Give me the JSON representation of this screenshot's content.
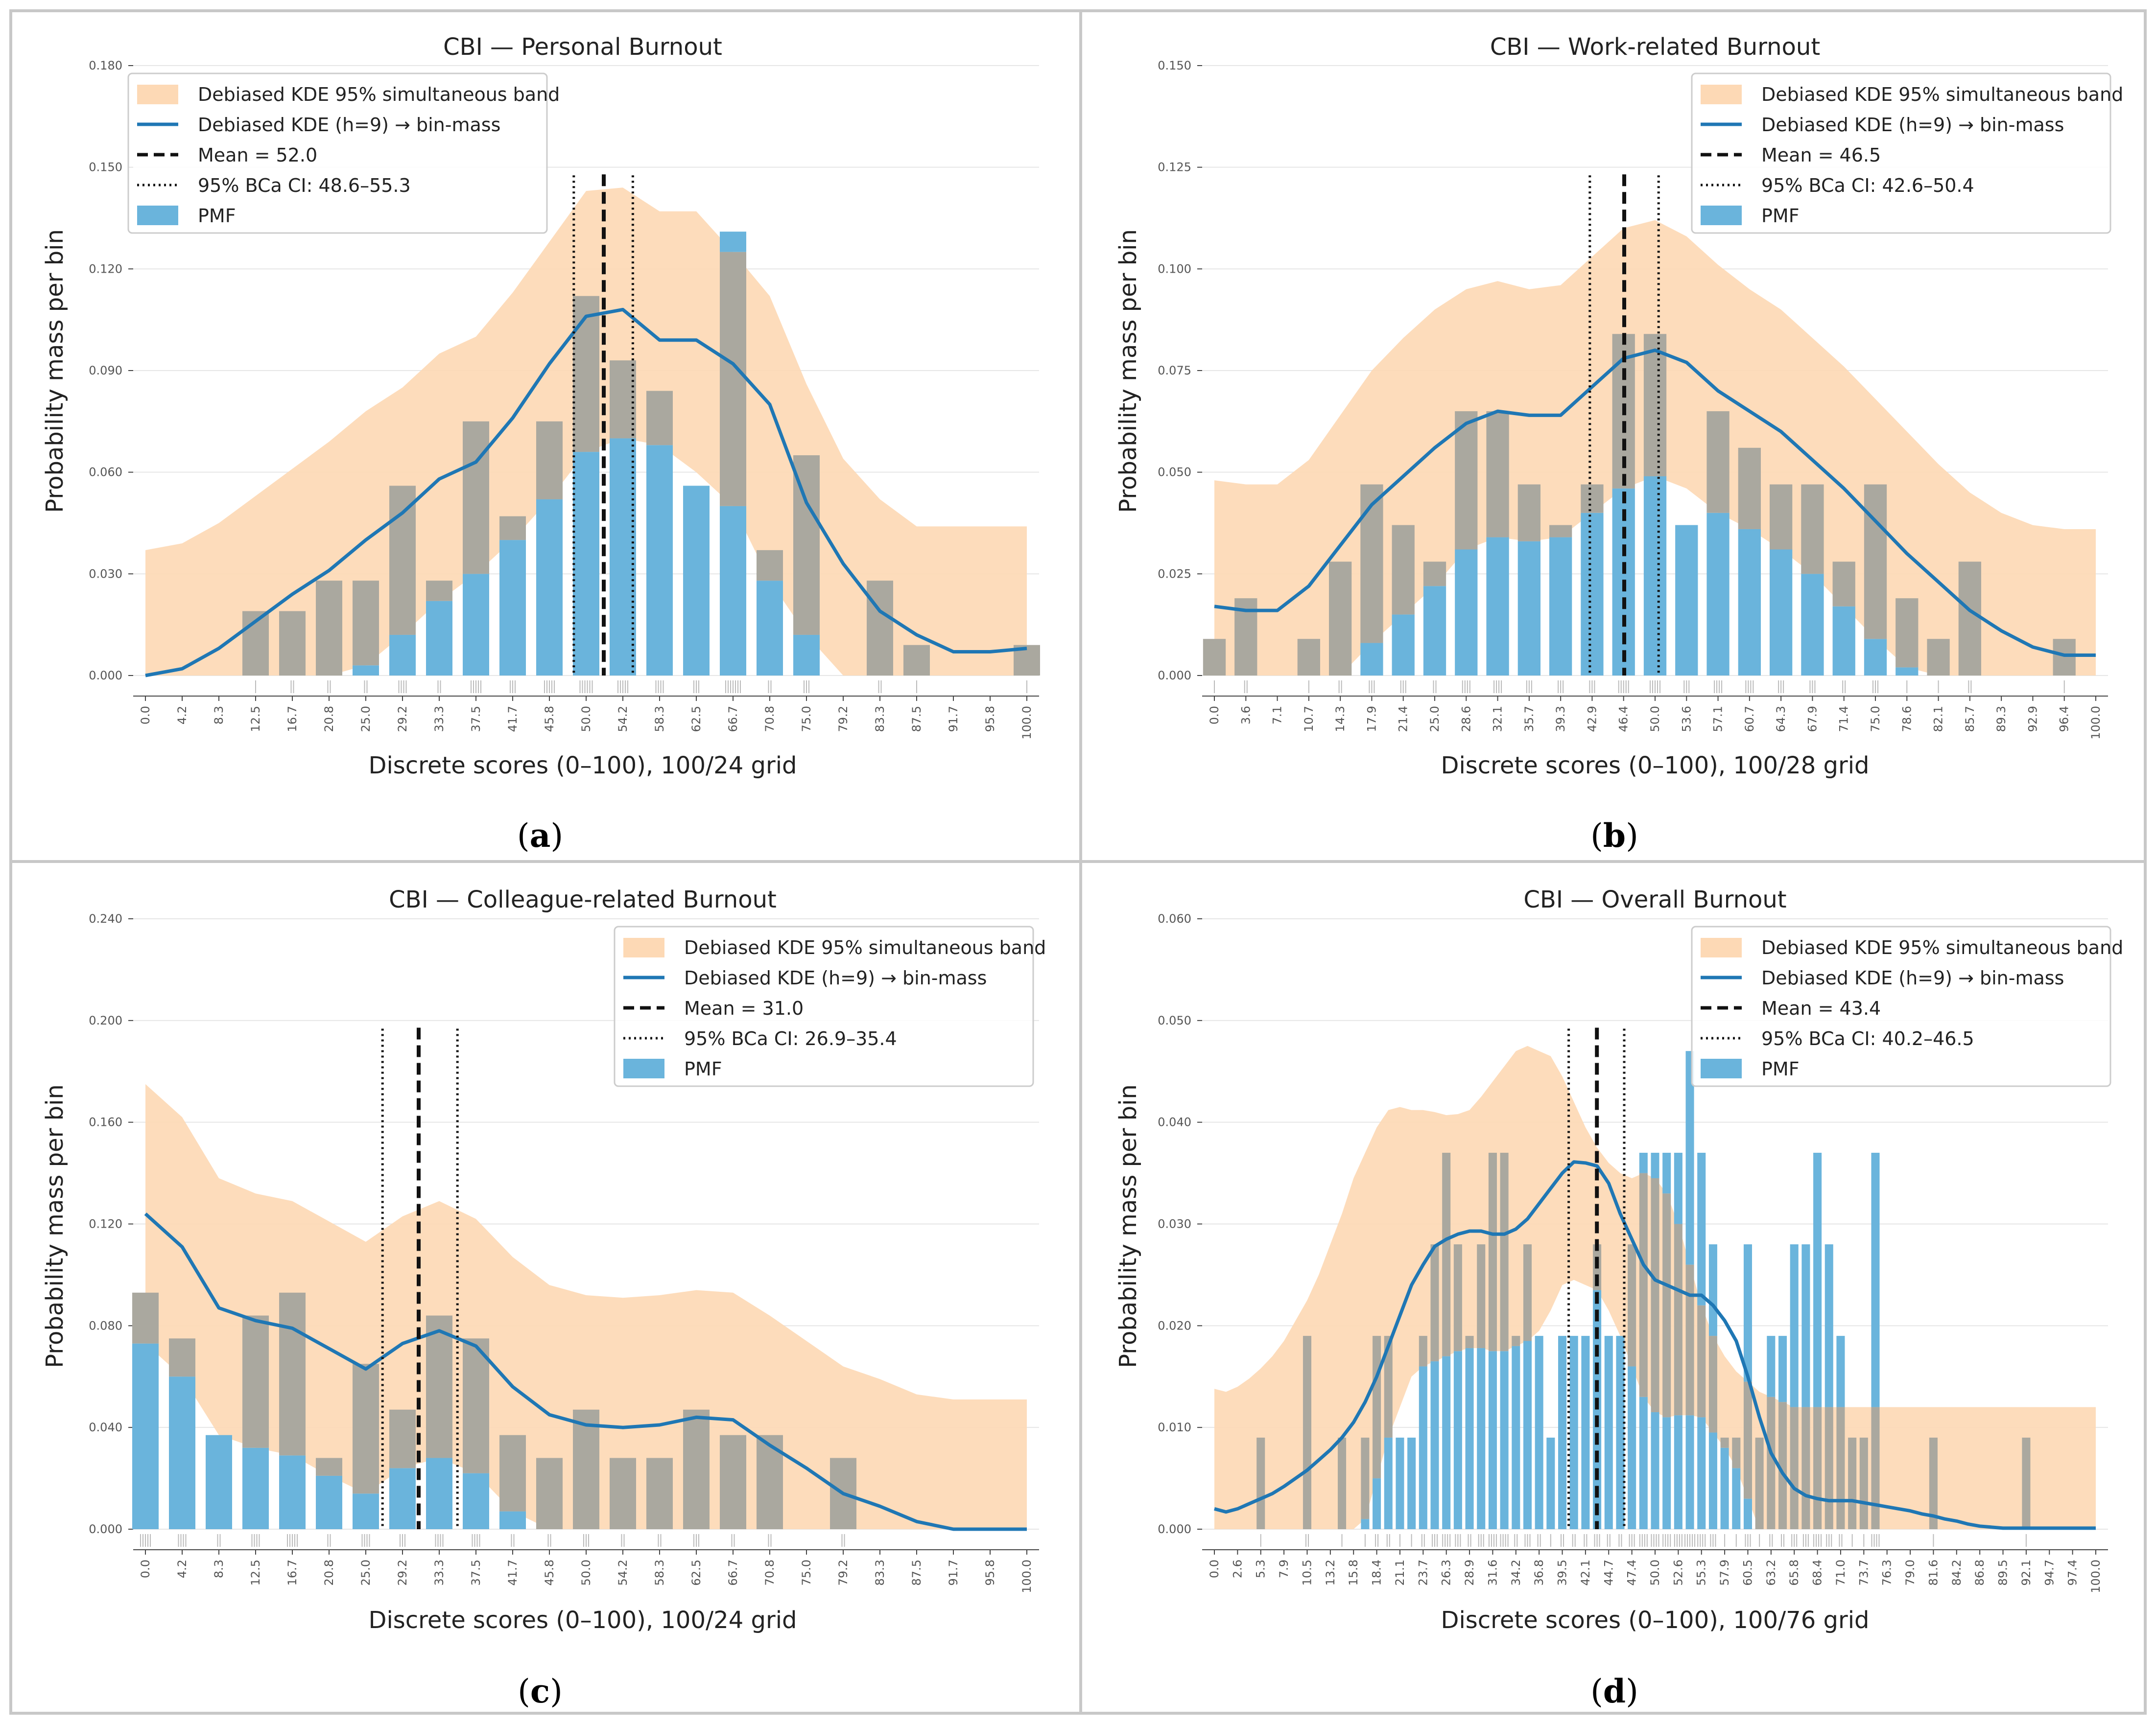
{
  "figure": {
    "colors": {
      "band": "#fdd9b5",
      "kde": "#1f77b4",
      "pmf": "#6ab4dc",
      "overlap": "#aaa89f",
      "rug": "#bbbbbb"
    }
  },
  "chart_data": [
    {
      "type": "bar",
      "letter": "a",
      "title": "CBI — Personal Burnout",
      "xlabel": "Discrete scores (0–100), 100/24 grid",
      "ylabel": "Probability mass per bin",
      "grid_n": 24,
      "ylim": [
        0,
        0.18
      ],
      "yticks": [
        0.0,
        0.03,
        0.06,
        0.09,
        0.12,
        0.15,
        0.18
      ],
      "ytick_labels": [
        "0.000",
        "0.030",
        "0.060",
        "0.090",
        "0.120",
        "0.150",
        "0.180"
      ],
      "xtick_labels": [
        "0.0",
        "4.2",
        "8.3",
        "12.5",
        "16.7",
        "20.8",
        "25.0",
        "29.2",
        "33.3",
        "37.5",
        "41.7",
        "45.8",
        "50.0",
        "54.2",
        "58.3",
        "62.5",
        "66.7",
        "70.8",
        "75.0",
        "79.2",
        "83.3",
        "87.5",
        "91.7",
        "95.8",
        "100.0"
      ],
      "pmf": [
        0,
        0,
        0,
        0.019,
        0.019,
        0.028,
        0.028,
        0.056,
        0.028,
        0.075,
        0.047,
        0.075,
        0.112,
        0.093,
        0.084,
        0.056,
        0.131,
        0.037,
        0.065,
        0,
        0.028,
        0.009,
        0,
        0,
        0.009
      ],
      "kde": [
        0,
        0.002,
        0.008,
        0.016,
        0.024,
        0.031,
        0.04,
        0.048,
        0.058,
        0.063,
        0.076,
        0.092,
        0.106,
        0.108,
        0.099,
        0.099,
        0.092,
        0.08,
        0.051,
        0.033,
        0.019,
        0.012,
        0.007,
        0.007,
        0.008
      ],
      "band_lower": [
        0,
        0,
        0,
        0,
        0,
        0,
        0.003,
        0.012,
        0.022,
        0.03,
        0.04,
        0.052,
        0.066,
        0.07,
        0.068,
        0.06,
        0.05,
        0.028,
        0.012,
        0,
        0,
        0,
        0,
        0,
        0
      ],
      "band_upper": [
        0.037,
        0.039,
        0.045,
        0.053,
        0.061,
        0.069,
        0.078,
        0.085,
        0.095,
        0.1,
        0.113,
        0.128,
        0.143,
        0.144,
        0.137,
        0.137,
        0.125,
        0.112,
        0.086,
        0.064,
        0.052,
        0.044,
        0.044,
        0.044,
        0.044
      ],
      "mean": 52.0,
      "ci": [
        48.6,
        55.3
      ],
      "rug_counts": [
        0,
        0,
        0,
        1,
        2,
        2,
        2,
        4,
        2,
        5,
        3,
        5,
        6,
        5,
        4,
        3,
        7,
        2,
        3,
        0,
        2,
        1,
        0,
        0,
        1
      ],
      "legend_position": "top-left",
      "legend": [
        "Debiased KDE 95% simultaneous band",
        "Debiased KDE (h=9) → bin-mass",
        "Mean = 52.0",
        "95% BCa CI: 48.6–55.3",
        "PMF"
      ]
    },
    {
      "type": "bar",
      "letter": "b",
      "title": "CBI — Work-related Burnout",
      "xlabel": "Discrete scores (0–100), 100/28 grid",
      "ylabel": "Probability mass per bin",
      "grid_n": 28,
      "ylim": [
        0,
        0.15
      ],
      "yticks": [
        0.0,
        0.025,
        0.05,
        0.075,
        0.1,
        0.125,
        0.15
      ],
      "ytick_labels": [
        "0.000",
        "0.025",
        "0.050",
        "0.075",
        "0.100",
        "0.125",
        "0.150"
      ],
      "xtick_labels": [
        "0.0",
        "3.6",
        "7.1",
        "10.7",
        "14.3",
        "17.9",
        "21.4",
        "25.0",
        "28.6",
        "32.1",
        "35.7",
        "39.3",
        "42.9",
        "46.4",
        "50.0",
        "53.6",
        "57.1",
        "60.7",
        "64.3",
        "67.9",
        "71.4",
        "75.0",
        "78.6",
        "82.1",
        "85.7",
        "89.3",
        "92.9",
        "96.4",
        "100.0"
      ],
      "pmf": [
        0.009,
        0.019,
        0,
        0.009,
        0.028,
        0.047,
        0.037,
        0.028,
        0.065,
        0.065,
        0.047,
        0.037,
        0.047,
        0.084,
        0.084,
        0.037,
        0.065,
        0.056,
        0.047,
        0.047,
        0.028,
        0.047,
        0.019,
        0.009,
        0.028,
        0,
        0,
        0.009,
        0
      ],
      "kde": [
        0.017,
        0.016,
        0.016,
        0.022,
        0.032,
        0.042,
        0.049,
        0.056,
        0.062,
        0.065,
        0.064,
        0.064,
        0.071,
        0.078,
        0.08,
        0.077,
        0.07,
        0.065,
        0.06,
        0.053,
        0.046,
        0.038,
        0.03,
        0.023,
        0.016,
        0.011,
        0.007,
        0.005,
        0.005
      ],
      "band_lower": [
        0,
        0,
        0,
        0,
        0,
        0.008,
        0.015,
        0.022,
        0.031,
        0.034,
        0.033,
        0.034,
        0.04,
        0.046,
        0.049,
        0.046,
        0.04,
        0.036,
        0.031,
        0.025,
        0.017,
        0.009,
        0.002,
        0,
        0,
        0,
        0,
        0,
        0
      ],
      "band_upper": [
        0.048,
        0.047,
        0.047,
        0.053,
        0.064,
        0.075,
        0.083,
        0.09,
        0.095,
        0.097,
        0.095,
        0.096,
        0.103,
        0.11,
        0.112,
        0.108,
        0.101,
        0.095,
        0.09,
        0.083,
        0.076,
        0.068,
        0.06,
        0.052,
        0.045,
        0.04,
        0.037,
        0.036,
        0.036
      ],
      "mean": 46.5,
      "ci": [
        42.6,
        50.4
      ],
      "rug_counts": [
        1,
        2,
        0,
        1,
        2,
        3,
        3,
        2,
        4,
        4,
        3,
        3,
        3,
        5,
        5,
        3,
        4,
        4,
        3,
        3,
        2,
        3,
        1,
        1,
        2,
        0,
        0,
        1,
        0
      ],
      "legend_position": "top-right",
      "legend": [
        "Debiased KDE 95% simultaneous band",
        "Debiased KDE (h=9) → bin-mass",
        "Mean = 46.5",
        "95% BCa CI: 42.6–50.4",
        "PMF"
      ]
    },
    {
      "type": "bar",
      "letter": "c",
      "title": "CBI — Colleague-related Burnout",
      "xlabel": "Discrete scores (0–100), 100/24 grid",
      "ylabel": "Probability mass per bin",
      "grid_n": 24,
      "ylim": [
        0,
        0.24
      ],
      "yticks": [
        0.0,
        0.04,
        0.08,
        0.12,
        0.16,
        0.2,
        0.24
      ],
      "ytick_labels": [
        "0.000",
        "0.040",
        "0.080",
        "0.120",
        "0.160",
        "0.200",
        "0.240"
      ],
      "xtick_labels": [
        "0.0",
        "4.2",
        "8.3",
        "12.5",
        "16.7",
        "20.8",
        "25.0",
        "29.2",
        "33.3",
        "37.5",
        "41.7",
        "45.8",
        "50.0",
        "54.2",
        "58.3",
        "62.5",
        "66.7",
        "70.8",
        "75.0",
        "79.2",
        "83.3",
        "87.5",
        "91.7",
        "95.8",
        "100.0"
      ],
      "pmf": [
        0.093,
        0.075,
        0.037,
        0.084,
        0.093,
        0.028,
        0.065,
        0.047,
        0.084,
        0.075,
        0.037,
        0.028,
        0.047,
        0.028,
        0.028,
        0.047,
        0.037,
        0.037,
        0,
        0.028,
        0,
        0,
        0,
        0,
        0
      ],
      "kde": [
        0.124,
        0.111,
        0.087,
        0.082,
        0.079,
        0.071,
        0.063,
        0.073,
        0.078,
        0.072,
        0.056,
        0.045,
        0.041,
        0.04,
        0.041,
        0.044,
        0.043,
        0.033,
        0.024,
        0.014,
        0.009,
        0.003,
        0,
        0,
        0
      ],
      "band_lower": [
        0.073,
        0.06,
        0.037,
        0.032,
        0.029,
        0.021,
        0.014,
        0.024,
        0.028,
        0.022,
        0.007,
        0,
        0,
        0,
        0,
        0,
        0,
        0,
        0,
        0,
        0,
        0,
        0,
        0,
        0
      ],
      "band_upper": [
        0.175,
        0.162,
        0.138,
        0.132,
        0.129,
        0.121,
        0.113,
        0.123,
        0.129,
        0.122,
        0.107,
        0.096,
        0.092,
        0.091,
        0.092,
        0.094,
        0.093,
        0.084,
        0.074,
        0.064,
        0.059,
        0.053,
        0.051,
        0.051,
        0.051
      ],
      "mean": 31.0,
      "ci": [
        26.9,
        35.4
      ],
      "rug_counts": [
        5,
        4,
        2,
        4,
        5,
        2,
        4,
        3,
        4,
        4,
        2,
        2,
        3,
        2,
        2,
        3,
        2,
        2,
        0,
        2,
        0,
        0,
        0,
        0,
        0
      ],
      "legend_position": "top-right",
      "legend": [
        "Debiased KDE 95% simultaneous band",
        "Debiased KDE (h=9) → bin-mass",
        "Mean = 31.0",
        "95% BCa CI: 26.9–35.4",
        "PMF"
      ]
    },
    {
      "type": "bar",
      "letter": "d",
      "title": "CBI — Overall Burnout",
      "xlabel": "Discrete scores (0–100), 100/76 grid",
      "ylabel": "Probability mass per bin",
      "grid_n": 76,
      "ylim": [
        0,
        0.06
      ],
      "yticks": [
        0.0,
        0.01,
        0.02,
        0.03,
        0.04,
        0.05,
        0.06
      ],
      "ytick_labels": [
        "0.000",
        "0.010",
        "0.020",
        "0.030",
        "0.040",
        "0.050",
        "0.060"
      ],
      "xtick_labels": [
        "0.0",
        "2.6",
        "5.3",
        "7.9",
        "10.5",
        "13.2",
        "15.8",
        "18.4",
        "21.1",
        "23.7",
        "26.3",
        "28.9",
        "31.6",
        "34.2",
        "36.8",
        "39.5",
        "42.1",
        "44.7",
        "47.4",
        "50.0",
        "52.6",
        "55.3",
        "57.9",
        "60.5",
        "63.2",
        "65.8",
        "68.4",
        "71.0",
        "73.7",
        "76.3",
        "79.0",
        "81.6",
        "84.2",
        "86.8",
        "89.5",
        "92.1",
        "94.7",
        "97.4",
        "100.0"
      ],
      "pmf": [
        0,
        0,
        0,
        0,
        0.009,
        0,
        0,
        0,
        0.019,
        0,
        0,
        0.009,
        0,
        0.009,
        0.019,
        0.019,
        0.009,
        0.009,
        0.019,
        0.028,
        0.037,
        0.028,
        0.019,
        0.028,
        0.037,
        0.037,
        0.019,
        0.028,
        0.019,
        0.009,
        0.019,
        0.019,
        0.019,
        0.028,
        0.019,
        0.019,
        0.028,
        0.037,
        0.037,
        0.037,
        0.037,
        0.047,
        0.037,
        0.028,
        0.009,
        0.009,
        0.028,
        0.009,
        0.019,
        0.019,
        0.028,
        0.028,
        0.037,
        0.028,
        0.019,
        0.009,
        0.009,
        0.037,
        0,
        0,
        0,
        0,
        0.009,
        0,
        0,
        0,
        0,
        0,
        0,
        0,
        0.009,
        0,
        0,
        0,
        0,
        0,
        0
      ],
      "kde": [
        0.002,
        0.0017,
        0.002,
        0.0025,
        0.003,
        0.0035,
        0.0042,
        0.005,
        0.0058,
        0.0068,
        0.0078,
        0.009,
        0.0105,
        0.0125,
        0.015,
        0.018,
        0.021,
        0.024,
        0.026,
        0.0278,
        0.0285,
        0.029,
        0.0293,
        0.0293,
        0.029,
        0.029,
        0.0295,
        0.0305,
        0.032,
        0.0335,
        0.035,
        0.0361,
        0.036,
        0.0357,
        0.034,
        0.031,
        0.0285,
        0.026,
        0.0245,
        0.024,
        0.0235,
        0.023,
        0.023,
        0.022,
        0.0205,
        0.0185,
        0.015,
        0.011,
        0.0075,
        0.0055,
        0.004,
        0.0033,
        0.003,
        0.0028,
        0.0028,
        0.0028,
        0.0026,
        0.0024,
        0.0022,
        0.002,
        0.0018,
        0.0015,
        0.0013,
        0.001,
        0.0008,
        0.0005,
        0.0003,
        0.0002,
        0.0001,
        0.0001,
        0.0001,
        0.0001,
        0.0001,
        0.0001,
        0.0001,
        0.0001,
        0.0001
      ],
      "band_lower": [
        0,
        0,
        0,
        0,
        0,
        0,
        0,
        0,
        0,
        0,
        0,
        0,
        0,
        0.001,
        0.005,
        0.009,
        0.012,
        0.015,
        0.016,
        0.0165,
        0.017,
        0.0175,
        0.0178,
        0.0178,
        0.0175,
        0.0175,
        0.018,
        0.0185,
        0.0195,
        0.0215,
        0.024,
        0.0245,
        0.024,
        0.0235,
        0.0215,
        0.019,
        0.016,
        0.013,
        0.0115,
        0.011,
        0.0112,
        0.0112,
        0.011,
        0.0095,
        0.008,
        0.006,
        0.003,
        0,
        0,
        0,
        0,
        0,
        0,
        0,
        0,
        0,
        0,
        0,
        0,
        0,
        0,
        0,
        0,
        0,
        0,
        0,
        0,
        0,
        0,
        0,
        0,
        0,
        0,
        0,
        0,
        0,
        0
      ],
      "band_upper": [
        0.0138,
        0.0135,
        0.014,
        0.0148,
        0.0158,
        0.017,
        0.0185,
        0.0205,
        0.0225,
        0.025,
        0.028,
        0.031,
        0.0345,
        0.037,
        0.0395,
        0.0412,
        0.0415,
        0.0412,
        0.0412,
        0.041,
        0.0407,
        0.0408,
        0.0412,
        0.0425,
        0.044,
        0.0455,
        0.047,
        0.0475,
        0.047,
        0.0465,
        0.0445,
        0.042,
        0.0395,
        0.0375,
        0.036,
        0.035,
        0.0345,
        0.035,
        0.0345,
        0.033,
        0.03,
        0.026,
        0.022,
        0.019,
        0.017,
        0.0155,
        0.0145,
        0.0135,
        0.013,
        0.0125,
        0.012,
        0.012,
        0.012,
        0.012,
        0.012,
        0.012,
        0.012,
        0.012,
        0.012,
        0.012,
        0.012,
        0.012,
        0.012,
        0.012,
        0.012,
        0.012,
        0.012,
        0.012,
        0.012,
        0.012,
        0.012,
        0.012,
        0.012,
        0.012,
        0.012,
        0.012,
        0.012
      ],
      "mean": 43.4,
      "ci": [
        40.2,
        46.5
      ],
      "rug_counts": [],
      "legend_position": "top-right",
      "legend": [
        "Debiased KDE 95% simultaneous band",
        "Debiased KDE (h=9) → bin-mass",
        "Mean = 43.4",
        "95% BCa CI: 40.2–46.5",
        "PMF"
      ]
    }
  ]
}
